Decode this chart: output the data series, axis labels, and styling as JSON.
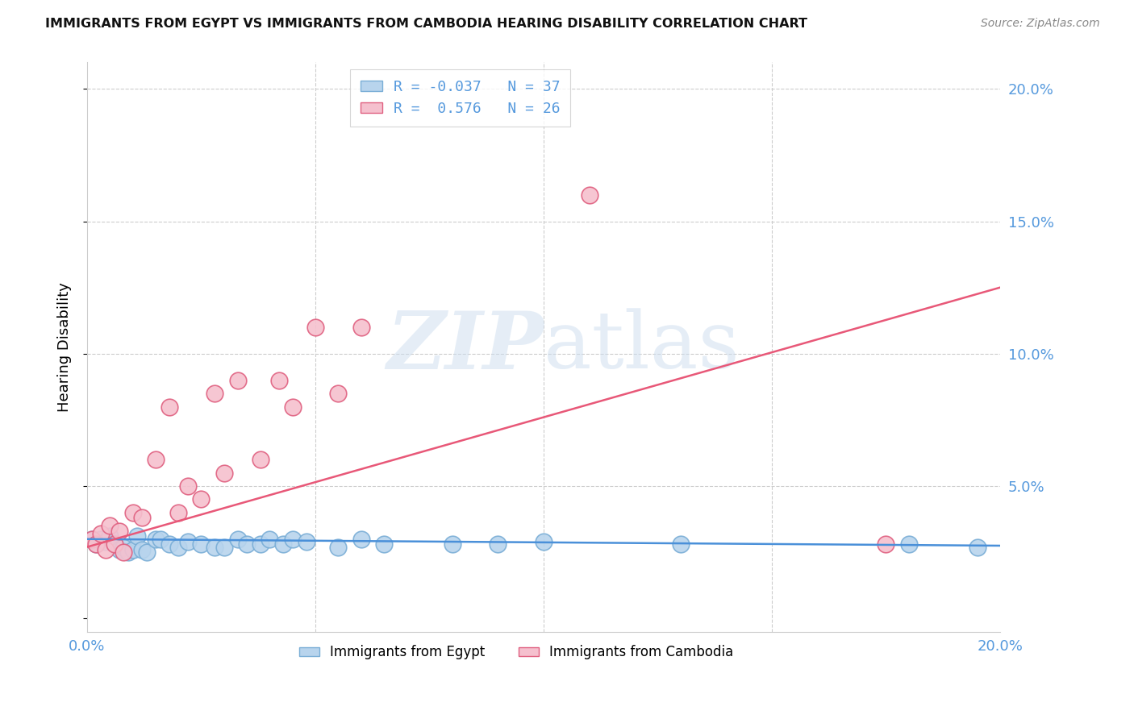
{
  "title": "IMMIGRANTS FROM EGYPT VS IMMIGRANTS FROM CAMBODIA HEARING DISABILITY CORRELATION CHART",
  "source": "Source: ZipAtlas.com",
  "ylabel": "Hearing Disability",
  "xlim": [
    0.0,
    0.2
  ],
  "ylim": [
    -0.005,
    0.21
  ],
  "egypt_color": "#b8d4ed",
  "egypt_edge": "#7aaed6",
  "cambodia_color": "#f5c0ce",
  "cambodia_edge": "#e06080",
  "egypt_line_color": "#4a90d9",
  "cambodia_line_color": "#e85878",
  "watermark_color": "#ccddef",
  "background_color": "#ffffff",
  "grid_color": "#cccccc",
  "tick_color": "#5599dd",
  "title_color": "#111111",
  "source_color": "#888888",
  "egypt_x": [
    0.001,
    0.002,
    0.003,
    0.004,
    0.005,
    0.006,
    0.007,
    0.008,
    0.009,
    0.01,
    0.011,
    0.012,
    0.013,
    0.015,
    0.016,
    0.018,
    0.02,
    0.022,
    0.025,
    0.028,
    0.03,
    0.033,
    0.035,
    0.038,
    0.04,
    0.043,
    0.045,
    0.048,
    0.055,
    0.06,
    0.065,
    0.08,
    0.09,
    0.1,
    0.13,
    0.18,
    0.195
  ],
  "egypt_y": [
    0.03,
    0.028,
    0.03,
    0.029,
    0.031,
    0.028,
    0.026,
    0.027,
    0.025,
    0.026,
    0.031,
    0.026,
    0.025,
    0.03,
    0.03,
    0.028,
    0.027,
    0.029,
    0.028,
    0.027,
    0.027,
    0.03,
    0.028,
    0.028,
    0.03,
    0.028,
    0.03,
    0.029,
    0.027,
    0.03,
    0.028,
    0.028,
    0.028,
    0.029,
    0.028,
    0.028,
    0.027
  ],
  "cambodia_x": [
    0.001,
    0.002,
    0.003,
    0.004,
    0.005,
    0.006,
    0.007,
    0.008,
    0.01,
    0.012,
    0.015,
    0.018,
    0.02,
    0.022,
    0.025,
    0.028,
    0.03,
    0.033,
    0.038,
    0.042,
    0.045,
    0.05,
    0.055,
    0.06,
    0.11,
    0.175
  ],
  "cambodia_y": [
    0.03,
    0.028,
    0.032,
    0.026,
    0.035,
    0.028,
    0.033,
    0.025,
    0.04,
    0.038,
    0.06,
    0.08,
    0.04,
    0.05,
    0.045,
    0.085,
    0.055,
    0.09,
    0.06,
    0.09,
    0.08,
    0.11,
    0.085,
    0.11,
    0.16,
    0.028
  ],
  "egypt_line_x": [
    0.0,
    0.2
  ],
  "egypt_line_y": [
    0.03,
    0.0275
  ],
  "cambodia_line_x": [
    0.0,
    0.2
  ],
  "cambodia_line_y": [
    0.027,
    0.125
  ],
  "legend1_label_r": "R = -0.037",
  "legend1_label_n": "N = 37",
  "legend2_label_r": "R =  0.576",
  "legend2_label_n": "N = 26",
  "legend_bottom_1": "Immigrants from Egypt",
  "legend_bottom_2": "Immigrants from Cambodia",
  "xtick_positions": [
    0.0,
    0.05,
    0.1,
    0.15,
    0.2
  ],
  "xtick_labels": [
    "0.0%",
    "",
    "",
    "",
    "20.0%"
  ],
  "ytick_positions": [
    0.0,
    0.05,
    0.1,
    0.15,
    0.2
  ],
  "ytick_labels": [
    "",
    "5.0%",
    "10.0%",
    "15.0%",
    "20.0%"
  ]
}
